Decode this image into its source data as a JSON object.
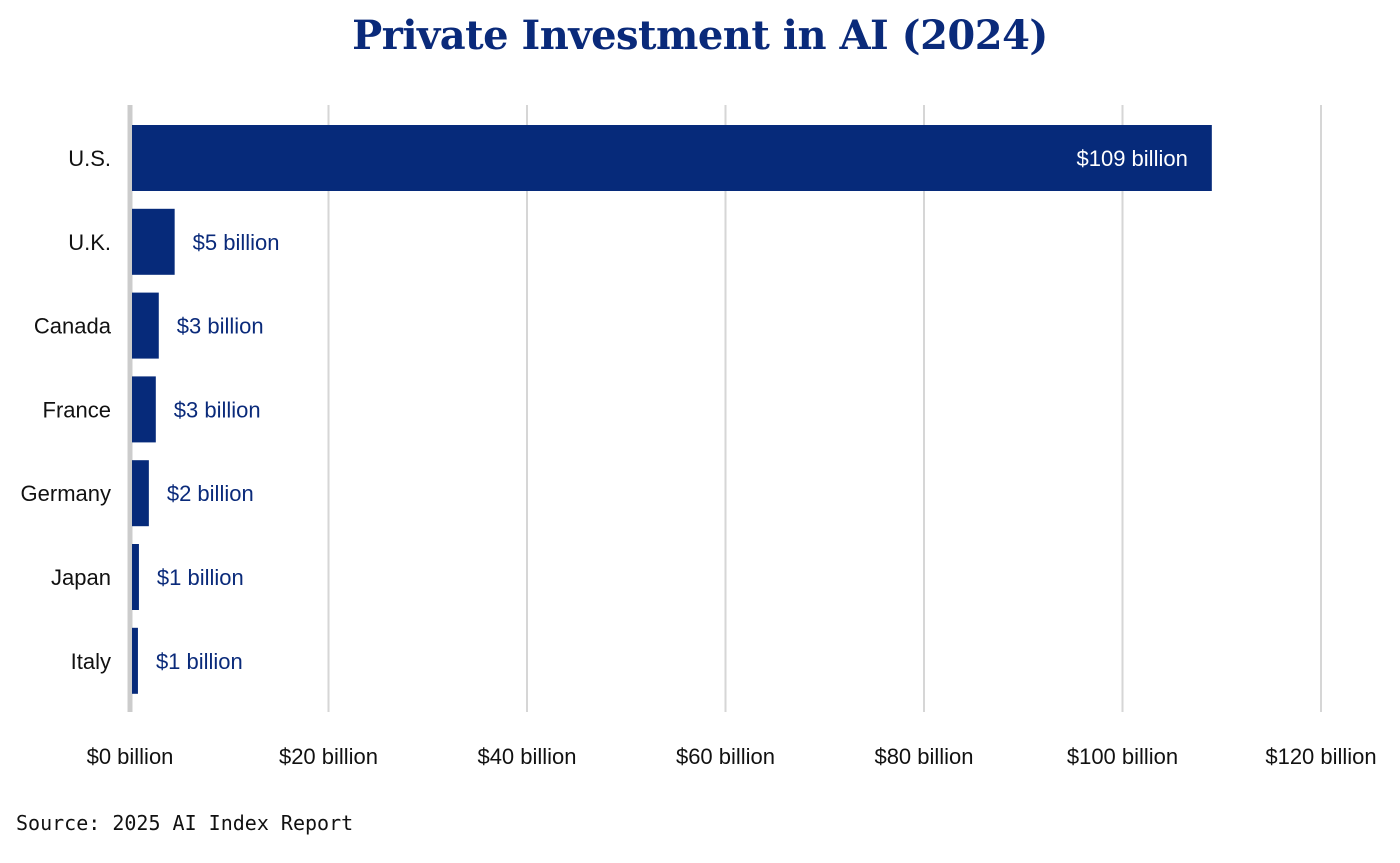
{
  "chart_data": {
    "type": "bar",
    "orientation": "horizontal",
    "title": "Private Investment in AI (2024)",
    "categories": [
      "U.S.",
      "U.K.",
      "Canada",
      "France",
      "Germany",
      "Japan",
      "Italy"
    ],
    "values": [
      109,
      4.5,
      2.9,
      2.6,
      1.9,
      0.9,
      0.8
    ],
    "data_labels": [
      "$109 billion",
      "$5 billion",
      "$3 billion",
      "$3 billion",
      "$2 billion",
      "$1 billion",
      "$1 billion"
    ],
    "xlim": [
      0,
      120
    ],
    "x_ticks": [
      0,
      20,
      40,
      60,
      80,
      100,
      120
    ],
    "x_tick_labels": [
      "$0 billion",
      "$20 billion",
      "$40 billion",
      "$60 billion",
      "$80 billion",
      "$100 billion",
      "$120 billion"
    ],
    "xlabel": "",
    "ylabel": "",
    "grid": "vertical",
    "legend": "none",
    "colors": {
      "bar": "#062a7a",
      "grid": "#d6d6d6",
      "axis": "#cccccc",
      "title": "#0a2a7a",
      "label": "#0a2a7a"
    }
  },
  "source": "Source: 2025 AI Index Report"
}
